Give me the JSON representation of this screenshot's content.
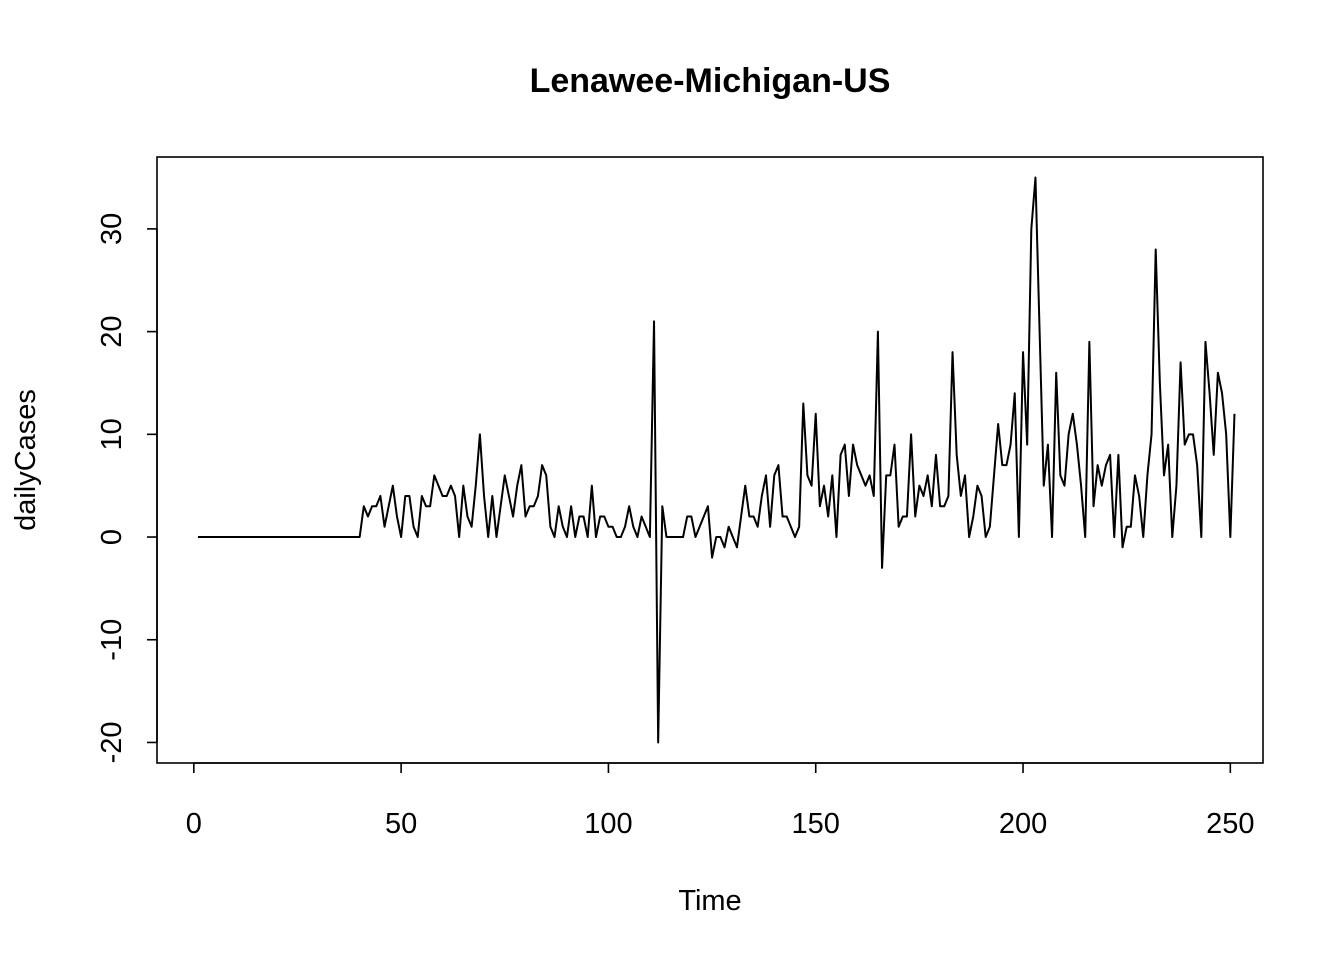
{
  "chart_data": {
    "type": "line",
    "title": "Lenawee-Michigan-US",
    "xlabel": "Time",
    "ylabel": "dailyCases",
    "xlim": [
      1,
      248
    ],
    "ylim": [
      -22,
      37
    ],
    "x_ticks": [
      0,
      50,
      100,
      150,
      200,
      250
    ],
    "x_tick_labels": [
      "0",
      "50",
      "100",
      "150",
      "200",
      "250"
    ],
    "y_ticks": [
      -20,
      -10,
      0,
      10,
      20,
      30
    ],
    "y_tick_labels": [
      "-20",
      "-10",
      "0",
      "10",
      "20",
      "30"
    ],
    "grid": false,
    "legend": "none",
    "line_color": "#000000",
    "series": [
      {
        "x_start": 1,
        "values": [
          0,
          0,
          0,
          0,
          0,
          0,
          0,
          0,
          0,
          0,
          0,
          0,
          0,
          0,
          0,
          0,
          0,
          0,
          0,
          0,
          0,
          0,
          0,
          0,
          0,
          0,
          0,
          0,
          0,
          0,
          0,
          0,
          0,
          0,
          0,
          0,
          0,
          0,
          0,
          0,
          3,
          2,
          3,
          3,
          4,
          1,
          3,
          5,
          2,
          0,
          4,
          4,
          1,
          0,
          4,
          3,
          3,
          6,
          5,
          4,
          4,
          5,
          4,
          0,
          5,
          2,
          1,
          5,
          10,
          4,
          0,
          4,
          0,
          3,
          6,
          4,
          2,
          5,
          7,
          2,
          3,
          3,
          4,
          7,
          6,
          1,
          0,
          3,
          1,
          0,
          3,
          0,
          2,
          2,
          0,
          5,
          0,
          2,
          2,
          1,
          1,
          0,
          0,
          1,
          3,
          1,
          0,
          2,
          1,
          0,
          21,
          -20,
          3,
          0,
          0,
          0,
          0,
          0,
          2,
          2,
          0,
          1,
          2,
          3,
          -2,
          0,
          0,
          -1,
          1,
          0,
          -1,
          2,
          5,
          2,
          2,
          1,
          4,
          6,
          1,
          6,
          7,
          2,
          2,
          1,
          0,
          1,
          13,
          6,
          5,
          12,
          3,
          5,
          2,
          6,
          0,
          8,
          9,
          4,
          9,
          7,
          6,
          5,
          6,
          4,
          20,
          -3,
          6,
          6,
          9,
          1,
          2,
          2,
          10,
          2,
          5,
          4,
          6,
          3,
          8,
          3,
          3,
          4,
          18,
          8,
          4,
          6,
          0,
          2,
          5,
          4,
          0,
          1,
          6,
          11,
          7,
          7,
          9,
          14,
          0,
          18,
          9,
          30,
          35,
          20,
          5,
          9,
          0,
          16,
          6,
          5,
          10,
          12,
          9,
          5,
          0,
          19,
          3,
          7,
          5,
          7,
          8,
          0,
          8,
          -1,
          1,
          1,
          6,
          4,
          0,
          6,
          10,
          28,
          15,
          6,
          9,
          0,
          5,
          17,
          9,
          10,
          10,
          7,
          0,
          19,
          14,
          8,
          16,
          14,
          10,
          0,
          12
        ]
      }
    ]
  }
}
